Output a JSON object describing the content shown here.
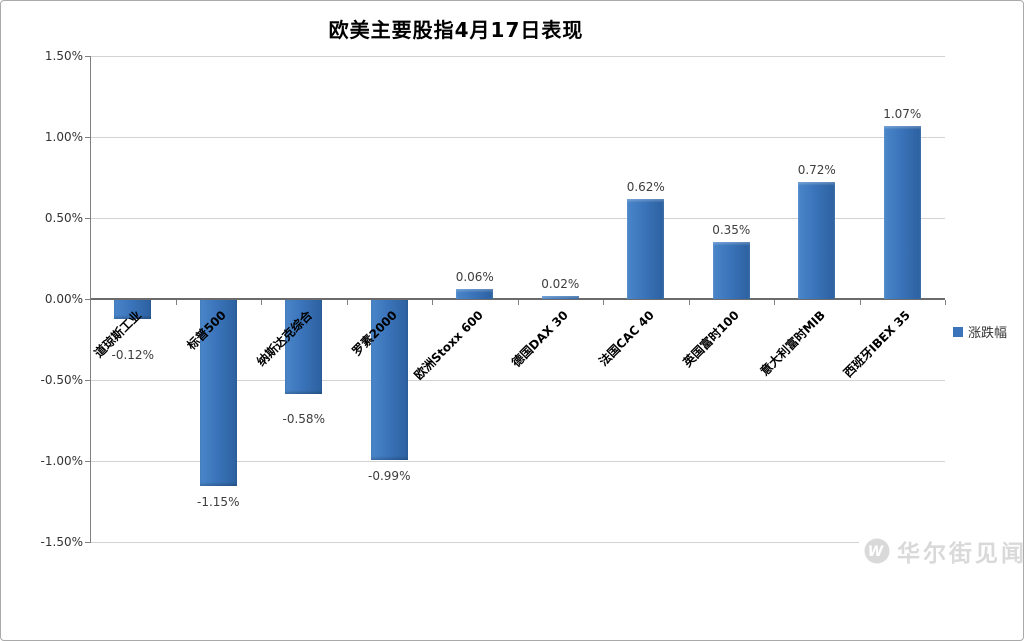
{
  "chart_data": {
    "type": "bar",
    "title": "欧美主要股指4月17日表现",
    "categories": [
      "道琼斯工业",
      "标普500",
      "纳斯达克综合",
      "罗素2000",
      "欧洲Stoxx 600",
      "德国DAX 30",
      "法国CAC 40",
      "英国富时100",
      "意大利富时MIB",
      "西班牙IBEX 35"
    ],
    "series": [
      {
        "name": "涨跌幅",
        "values": [
          -0.12,
          -1.15,
          -0.58,
          -0.99,
          0.06,
          0.02,
          0.62,
          0.35,
          0.72,
          1.07
        ]
      }
    ],
    "data_labels": [
      "-0.12%",
      "-1.15%",
      "-0.58%",
      "-0.99%",
      "0.06%",
      "0.02%",
      "0.62%",
      "0.35%",
      "0.72%",
      "1.07%"
    ],
    "y_ticks": [
      "1.50%",
      "1.00%",
      "0.50%",
      "0.00%",
      "-0.50%",
      "-1.00%",
      "-1.50%"
    ],
    "ylim": [
      -1.5,
      1.5
    ],
    "y_step": 0.5,
    "grid": true,
    "legend_position": "right",
    "xlabel": "",
    "ylabel": "",
    "bar_color": "#3B74BA",
    "bar_color_light": "#4A86C9",
    "bar_color_dark": "#2C61A0",
    "gridline_color": "#D3D3D3",
    "axis_color": "#6B6B6B",
    "tick_color": "#808080",
    "watermark": "华尔街见闻",
    "watermark_color": "#D9D9D9",
    "watermark_logo": "W"
  }
}
